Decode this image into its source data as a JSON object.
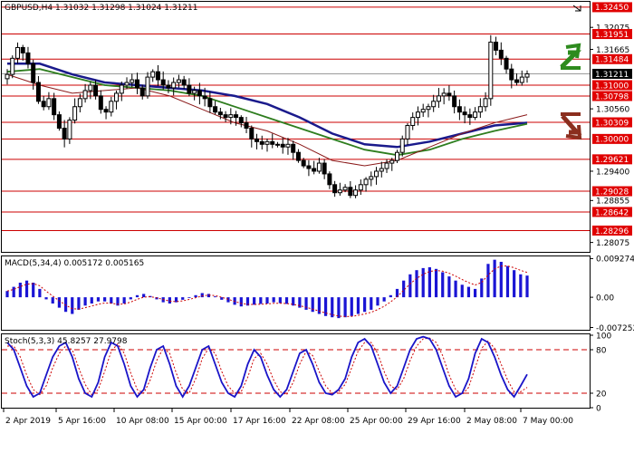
{
  "header": {
    "main": "GBPUSD,H4  1.31032 1.31298 1.31024 1.31211",
    "macd": "MACD(5,34,4) 0.005172 0.005165",
    "stoch": "Stoch(5,3,3) 45.8257 27.9798"
  },
  "colors": {
    "candle": "#000000",
    "ma_blue": "#1a1a8c",
    "ma_green": "#2e7d1e",
    "ma_red": "#8b1a1a",
    "level_line": "#cc0000",
    "level_label_bg": "#e00000",
    "current_label_bg": "#000000",
    "macd_bar": "#1a14d4",
    "signal": "#cc0000",
    "stoch_main": "#1a14c8",
    "stoch_signal": "#cc0000",
    "arrow_up": "#2e8b1e",
    "arrow_down": "#8b2e1e"
  },
  "icons": [
    "arrow-up-icon",
    "arrow-down-icon"
  ],
  "chart_data": [
    {
      "type": "candlestick",
      "title": "GBPUSD,H4",
      "ohlc_current": {
        "open": 1.31032,
        "high": 1.31298,
        "low": 1.31024,
        "close": 1.31211
      },
      "ylim": [
        1.279,
        1.3255
      ],
      "price_ticks": [
        "1.32450",
        "1.32075",
        "1.31951",
        "1.31665",
        "1.31484",
        "1.31211",
        "1.31000",
        "1.30798",
        "1.30560",
        "1.30309",
        "1.30000",
        "1.29621",
        "1.29400",
        "1.29028",
        "1.28855",
        "1.28642",
        "1.28296",
        "1.28075"
      ],
      "highlighted_levels": [
        1.3245,
        1.31951,
        1.31484,
        1.31,
        1.30798,
        1.30309,
        1.3,
        1.29621,
        1.29028,
        1.28642,
        1.28296
      ],
      "current_price": 1.31211,
      "x_labels": [
        "2 Apr 2019",
        "5 Apr 16:00",
        "10 Apr 08:00",
        "15 Apr 00:00",
        "17 Apr 16:00",
        "22 Apr 08:00",
        "25 Apr 00:00",
        "29 Apr 16:00",
        "2 May 08:00",
        "7 May 00:00"
      ],
      "close_series": [
        1.312,
        1.315,
        1.317,
        1.316,
        1.314,
        1.3105,
        1.307,
        1.306,
        1.3075,
        1.3045,
        1.302,
        1.3,
        1.3035,
        1.306,
        1.3075,
        1.309,
        1.31,
        1.308,
        1.3055,
        1.305,
        1.307,
        1.3085,
        1.31,
        1.3105,
        1.311,
        1.3095,
        1.308,
        1.3115,
        1.3125,
        1.311,
        1.31,
        1.3095,
        1.3105,
        1.311,
        1.31,
        1.3085,
        1.309,
        1.308,
        1.3075,
        1.306,
        1.305,
        1.3045,
        1.304,
        1.3045,
        1.304,
        1.303,
        1.302,
        1.3,
        1.2995,
        1.299,
        1.2995,
        1.299,
        1.299,
        1.2985,
        1.299,
        1.2975,
        1.296,
        1.295,
        1.2945,
        1.294,
        1.2955,
        1.2935,
        1.2915,
        1.29,
        1.2905,
        1.291,
        1.2895,
        1.2905,
        1.2915,
        1.2925,
        1.293,
        1.294,
        1.2945,
        1.2955,
        1.296,
        1.2975,
        1.3,
        1.3025,
        1.304,
        1.305,
        1.3055,
        1.306,
        1.307,
        1.308,
        1.3085,
        1.308,
        1.306,
        1.305,
        1.3045,
        1.304,
        1.305,
        1.306,
        1.3075,
        1.318,
        1.3165,
        1.315,
        1.313,
        1.311,
        1.3105,
        1.3115,
        1.3121
      ],
      "moving_averages": [
        {
          "color": "blue",
          "values": [
            1.314,
            1.314,
            1.312,
            1.3105,
            1.31,
            1.3095,
            1.309,
            1.308,
            1.3065,
            1.304,
            1.301,
            1.299,
            1.2985,
            1.2995,
            1.301,
            1.3025,
            1.303
          ]
        },
        {
          "color": "green",
          "values": [
            1.3125,
            1.313,
            1.3115,
            1.31,
            1.3095,
            1.309,
            1.308,
            1.306,
            1.304,
            1.302,
            1.3,
            1.298,
            1.297,
            1.298,
            1.3,
            1.3015,
            1.3028
          ]
        },
        {
          "color": "red",
          "values": [
            1.312,
            1.31,
            1.3085,
            1.309,
            1.3095,
            1.308,
            1.3055,
            1.303,
            1.3015,
            1.299,
            1.296,
            1.295,
            1.296,
            1.2985,
            1.301,
            1.303,
            1.3045
          ]
        }
      ]
    },
    {
      "type": "bar",
      "title": "MACD(5,34,4)",
      "value": 0.005172,
      "signal_value": 0.005165,
      "y_ticks": [
        "0.009274",
        "0.00",
        "-0.007252"
      ],
      "ylim": [
        -0.0078,
        0.0098
      ],
      "values": [
        0.0015,
        0.0025,
        0.0035,
        0.004,
        0.0035,
        0.002,
        -0.0005,
        -0.0015,
        -0.0025,
        -0.0035,
        -0.004,
        -0.003,
        -0.002,
        -0.0015,
        -0.001,
        -0.001,
        -0.0015,
        -0.002,
        -0.0015,
        -0.0005,
        0.0005,
        0.0008,
        0.0003,
        -0.0005,
        -0.0012,
        -0.0015,
        -0.0012,
        -0.0006,
        0.0,
        0.0005,
        0.001,
        0.0008,
        0.0002,
        -0.0006,
        -0.0012,
        -0.0018,
        -0.0022,
        -0.002,
        -0.0018,
        -0.0016,
        -0.0015,
        -0.0012,
        -0.0014,
        -0.0016,
        -0.002,
        -0.0025,
        -0.003,
        -0.0035,
        -0.004,
        -0.0045,
        -0.0048,
        -0.005,
        -0.0048,
        -0.0045,
        -0.004,
        -0.0035,
        -0.003,
        -0.002,
        -0.001,
        0.0005,
        0.002,
        0.004,
        0.0055,
        0.0065,
        0.007,
        0.0072,
        0.0068,
        0.006,
        0.005,
        0.004,
        0.003,
        0.0025,
        0.002,
        0.0045,
        0.008,
        0.009,
        0.0085,
        0.0075,
        0.0065,
        0.0055,
        0.0052
      ]
    },
    {
      "type": "line",
      "title": "Stoch(5,3,3)",
      "main_value": 45.8257,
      "signal_value": 27.9798,
      "y_ticks": [
        "100",
        "80",
        "20",
        "0"
      ],
      "ylim": [
        0,
        100
      ],
      "levels": [
        80,
        20
      ],
      "main": [
        90,
        80,
        55,
        30,
        15,
        20,
        45,
        70,
        85,
        90,
        70,
        40,
        20,
        15,
        35,
        70,
        90,
        85,
        60,
        30,
        15,
        25,
        55,
        80,
        85,
        60,
        30,
        15,
        30,
        55,
        80,
        85,
        60,
        35,
        20,
        15,
        30,
        60,
        80,
        70,
        45,
        25,
        15,
        25,
        50,
        75,
        80,
        60,
        35,
        20,
        18,
        25,
        40,
        70,
        90,
        95,
        85,
        60,
        35,
        20,
        30,
        55,
        80,
        95,
        98,
        95,
        80,
        55,
        30,
        15,
        20,
        40,
        75,
        95,
        90,
        70,
        45,
        25,
        15,
        30,
        46
      ],
      "signal": [
        85,
        85,
        70,
        45,
        25,
        18,
        30,
        55,
        75,
        85,
        80,
        55,
        32,
        18,
        25,
        50,
        78,
        88,
        75,
        48,
        25,
        20,
        38,
        65,
        82,
        75,
        48,
        25,
        20,
        40,
        68,
        82,
        75,
        50,
        30,
        20,
        22,
        42,
        68,
        75,
        60,
        38,
        22,
        18,
        35,
        60,
        78,
        72,
        50,
        30,
        20,
        22,
        32,
        55,
        78,
        90,
        90,
        75,
        50,
        30,
        25,
        40,
        65,
        85,
        95,
        96,
        90,
        72,
        45,
        25,
        18,
        28,
        55,
        82,
        92,
        82,
        60,
        38,
        22,
        22,
        28
      ]
    }
  ]
}
